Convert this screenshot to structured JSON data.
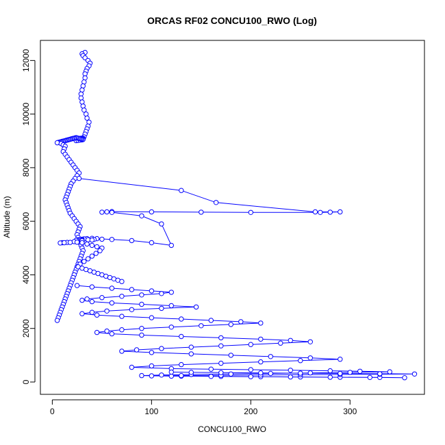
{
  "chart_data": {
    "type": "line",
    "title": "ORCAS RF02 CONCU100_RWO (Log)",
    "xlabel": "CONCU100_RWO",
    "ylabel": "Altitude (m)",
    "xlim": [
      -12,
      375
    ],
    "ylim": [
      -460,
      12750
    ],
    "xticks": [
      0,
      100,
      200,
      300
    ],
    "yticks": [
      0,
      2000,
      4000,
      6000,
      8000,
      10000,
      12000
    ],
    "grid": false,
    "legend": "none",
    "color": "#0000ff",
    "series": [
      {
        "x": [
          33,
          30,
          31,
          33,
          36,
          38,
          37,
          35,
          34,
          33,
          33,
          32,
          31,
          30,
          29,
          29,
          30,
          31,
          32,
          34,
          35,
          37,
          36,
          35,
          34,
          33,
          32,
          31,
          30,
          29,
          28,
          27,
          26,
          25,
          24,
          25,
          26,
          27,
          28,
          29,
          30,
          31,
          30,
          29,
          28,
          27,
          26,
          25,
          24,
          26,
          28,
          30,
          31,
          30,
          29,
          28,
          27,
          26,
          25,
          24,
          23,
          22,
          21,
          20,
          19,
          18,
          17,
          16,
          15,
          14,
          13,
          12,
          11,
          10,
          9,
          8,
          7,
          6,
          5,
          9,
          11,
          13,
          12,
          11,
          13,
          15,
          17,
          19,
          21,
          23,
          25,
          27,
          25,
          23,
          21,
          19,
          18,
          17,
          16,
          15,
          14,
          13,
          14,
          15,
          16,
          17,
          18,
          20,
          22,
          24,
          26,
          28,
          27,
          26,
          25,
          26,
          27,
          28,
          29,
          30,
          31,
          30,
          29,
          28,
          27,
          26,
          25,
          24,
          23,
          22,
          21,
          20,
          19,
          18,
          17,
          16,
          15,
          14,
          13,
          12,
          11,
          10,
          9,
          8,
          7,
          6,
          5
        ],
        "y": [
          12300,
          12250,
          12180,
          12100,
          12000,
          11900,
          11800,
          11700,
          11600,
          11500,
          11350,
          11200,
          11050,
          10900,
          10750,
          10600,
          10450,
          10300,
          10150,
          10000,
          9850,
          9700,
          9550,
          9450,
          9350,
          9250,
          9150,
          9100,
          9080,
          9080,
          9070,
          9060,
          9050,
          9040,
          9050,
          9060,
          9070,
          9080,
          9090,
          9100,
          9090,
          9080,
          9070,
          9060,
          9050,
          9040,
          9030,
          9020,
          9010,
          9020,
          9030,
          9040,
          9050,
          9060,
          9070,
          9080,
          9090,
          9100,
          9110,
          9120,
          9110,
          9100,
          9090,
          9080,
          9070,
          9060,
          9050,
          9040,
          9030,
          9020,
          9010,
          9000,
          8990,
          8980,
          8970,
          8960,
          8950,
          8940,
          8930,
          8900,
          8850,
          8800,
          8700,
          8600,
          8500,
          8400,
          8300,
          8200,
          8100,
          8000,
          7900,
          7800,
          7700,
          7600,
          7500,
          7400,
          7300,
          7200,
          7100,
          7000,
          6900,
          6800,
          6700,
          6600,
          6500,
          6400,
          6300,
          6200,
          6100,
          6000,
          5900,
          5800,
          5700,
          5600,
          5500,
          5400,
          5300,
          5200,
          5100,
          5000,
          4900,
          4800,
          4700,
          4600,
          4500,
          4400,
          4300,
          4200,
          4100,
          4000,
          3900,
          3800,
          3700,
          3600,
          3500,
          3400,
          3300,
          3200,
          3100,
          3000,
          2900,
          2800,
          2700,
          2600,
          2500,
          2400,
          2300
        ]
      },
      {
        "x": [
          27,
          130,
          165,
          265,
          290,
          280,
          270,
          200,
          150,
          100,
          60,
          55,
          50,
          60,
          90,
          110,
          120,
          100,
          80,
          60,
          45,
          40,
          35,
          32,
          30,
          28,
          26,
          25,
          24,
          30,
          36,
          42,
          50,
          40,
          30,
          22,
          15,
          10,
          8,
          12,
          18,
          25,
          30,
          35,
          40,
          45,
          50,
          48,
          44,
          40,
          36,
          32,
          28,
          26,
          30,
          34,
          38,
          42,
          46,
          50,
          54,
          58,
          62,
          66,
          70
        ],
        "y": [
          7600,
          7150,
          6700,
          6350,
          6350,
          6340,
          6330,
          6330,
          6340,
          6350,
          6360,
          6350,
          6340,
          6330,
          6200,
          5900,
          5100,
          5200,
          5280,
          5320,
          5350,
          5360,
          5350,
          5340,
          5330,
          5320,
          5310,
          5300,
          5290,
          5300,
          5310,
          5320,
          5330,
          5300,
          5270,
          5240,
          5210,
          5200,
          5190,
          5200,
          5210,
          5220,
          5200,
          5150,
          5100,
          5050,
          5000,
          4900,
          4800,
          4700,
          4600,
          4500,
          4400,
          4300,
          4250,
          4200,
          4150,
          4100,
          4050,
          4000,
          3950,
          3900,
          3850,
          3800,
          3750
        ]
      },
      {
        "x": [
          25,
          40,
          60,
          80,
          100,
          120,
          110,
          90,
          70,
          50,
          35,
          30,
          40,
          60,
          90,
          120,
          145,
          110,
          80,
          55,
          40,
          30,
          45,
          70,
          100,
          130,
          160,
          190,
          210,
          180,
          150,
          120,
          90,
          70,
          55,
          45,
          60,
          90,
          130,
          170,
          210,
          240,
          260,
          230,
          200,
          170,
          140,
          110,
          85,
          70,
          100,
          140,
          180,
          220,
          260,
          290,
          250,
          210,
          170,
          130,
          100,
          80,
          120,
          160,
          200,
          240,
          280,
          310,
          340,
          300,
          260,
          220,
          180,
          140,
          110,
          90,
          120,
          160,
          200,
          240,
          280,
          320,
          355,
          330,
          290,
          250,
          210,
          170,
          130,
          100,
          130,
          170,
          210,
          250,
          290,
          330,
          365,
          330,
          290,
          250,
          210,
          170,
          140,
          120
        ],
        "y": [
          3600,
          3550,
          3500,
          3450,
          3400,
          3350,
          3300,
          3250,
          3200,
          3150,
          3100,
          3050,
          3000,
          2950,
          2900,
          2850,
          2800,
          2750,
          2700,
          2650,
          2600,
          2550,
          2500,
          2450,
          2400,
          2350,
          2300,
          2250,
          2200,
          2150,
          2100,
          2050,
          2000,
          1950,
          1900,
          1850,
          1800,
          1750,
          1700,
          1650,
          1600,
          1550,
          1500,
          1450,
          1400,
          1350,
          1300,
          1250,
          1200,
          1150,
          1100,
          1050,
          1000,
          950,
          900,
          850,
          800,
          750,
          700,
          650,
          600,
          550,
          500,
          480,
          460,
          440,
          420,
          400,
          380,
          360,
          340,
          320,
          300,
          280,
          260,
          240,
          220,
          210,
          200,
          190,
          180,
          170,
          160,
          170,
          180,
          190,
          200,
          210,
          220,
          230,
          240,
          250,
          260,
          270,
          280,
          290,
          300,
          310,
          320,
          330,
          340,
          350,
          360,
          370
        ]
      }
    ]
  }
}
